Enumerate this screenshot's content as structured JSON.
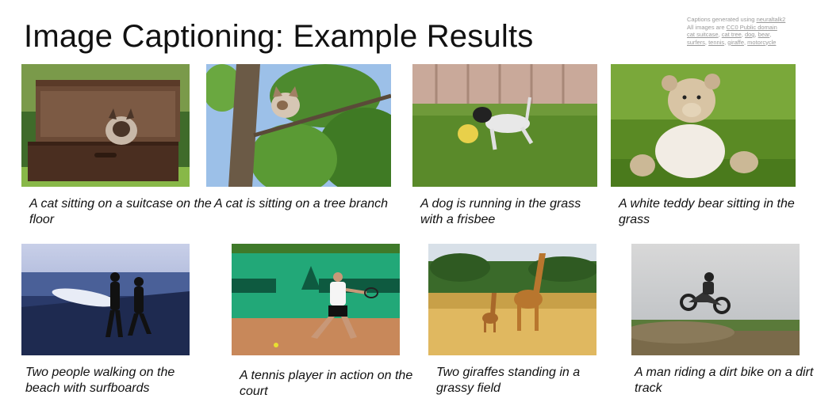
{
  "slide": {
    "title": "Image Captioning: Example Results",
    "credit": {
      "line1_prefix": "Captions generated using ",
      "line1_link": "neuraltalk2",
      "line2_prefix": "All images are ",
      "line2_link": "CC0 Public domain",
      "links": [
        "cat suitcase",
        "cat tree",
        "dog",
        "bear",
        "surfers",
        "tennis",
        "giraffe",
        "motorcycle"
      ]
    }
  },
  "results": [
    {
      "image": "cat-suitcase-photo",
      "caption": "A cat sitting on a suitcase on the floor"
    },
    {
      "image": "cat-tree-photo",
      "caption": "A cat is sitting on a tree branch"
    },
    {
      "image": "dog-frisbee-photo",
      "caption": "A dog is running in the grass with a frisbee"
    },
    {
      "image": "teddy-bear-photo",
      "caption": "A white teddy bear sitting in the grass"
    },
    {
      "image": "surfers-beach-photo",
      "caption": "Two people walking on the beach with surfboards"
    },
    {
      "image": "tennis-player-photo",
      "caption": "A tennis player in action on the court"
    },
    {
      "image": "giraffes-field-photo",
      "caption": "Two giraffes standing in a grassy field"
    },
    {
      "image": "dirt-bike-photo",
      "caption": "A man riding a dirt bike on a dirt track"
    }
  ]
}
